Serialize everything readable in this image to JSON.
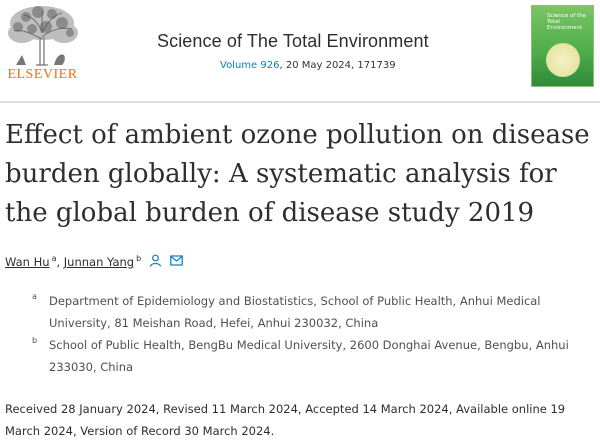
{
  "publisher": {
    "logo_text": "ELSEVIER",
    "logo_color": "#ff6c00"
  },
  "journal": {
    "title": "Science of The Total Environment",
    "volume_link": "Volume 926",
    "issue_details": ", 20 May 2024, 171739",
    "link_color": "#0c7dbb",
    "cover_title": "Science of the Total Environment"
  },
  "article": {
    "title": "Effect of ambient ozone pollution on disease burden globally: A systematic analysis for the global burden of disease study 2019"
  },
  "authors": [
    {
      "name": "Wan Hu",
      "affiliation": "a"
    },
    {
      "name": "Junnan Yang",
      "affiliation": "b"
    }
  ],
  "authors_separator": ",",
  "author_icons": [
    "person-icon",
    "envelope-icon"
  ],
  "affiliations": [
    {
      "mark": "a",
      "text": "Department of Epidemiology and Biostatistics, School of Public Health, Anhui Medical University, 81 Meishan Road, Hefei, Anhui 230032, China"
    },
    {
      "mark": "b",
      "text": "School of Public Health, BengBu Medical University, 2600 Donghai Avenue, Bengbu, Anhui 233030, China"
    }
  ],
  "history": "Received 28 January 2024, Revised 11 March 2024, Accepted 14 March 2024, Available online 19 March 2024, Version of Record 30 March 2024."
}
